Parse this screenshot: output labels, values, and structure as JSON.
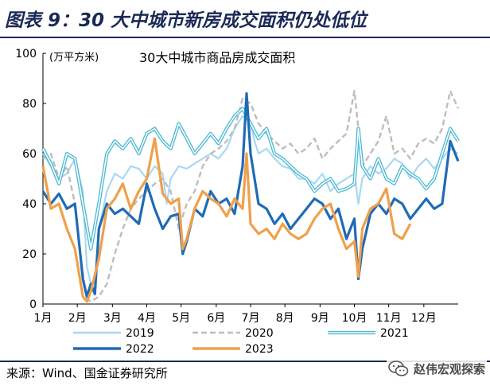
{
  "figure": {
    "title": "图表 9：30 大中城市新房成交面积仍处低位",
    "source": "来源：Wind、国金证券研究所",
    "watermark": "赵伟宏观探索",
    "watermark_icon": "wechat-icon"
  },
  "colors": {
    "2019": "#a9d8f2",
    "2020": "#bdbdbd",
    "2021": "#4bb8d6",
    "2022": "#1f6bb5",
    "2023": "#f0a04b",
    "title_rule": "#1b2a56"
  },
  "chart_data": {
    "type": "line",
    "title": "30大中城市商品房成交面积",
    "unit_label": "(万平方米)",
    "ylim": [
      0,
      100
    ],
    "yticks": [
      0,
      20,
      40,
      60,
      80,
      100
    ],
    "xlim": [
      1,
      53
    ],
    "xticks": [
      1,
      5.3,
      9.7,
      14,
      18.3,
      22.7,
      27,
      31.3,
      35.7,
      40,
      44.3,
      48.7
    ],
    "xtick_labels": [
      "1月",
      "2月",
      "3月",
      "4月",
      "5月",
      "6月",
      "7月",
      "8月",
      "9月",
      "10月",
      "11月",
      "12月"
    ],
    "legend": [
      {
        "name": "2019",
        "style": "thin"
      },
      {
        "name": "2020",
        "style": "dashed"
      },
      {
        "name": "2021",
        "style": "double"
      },
      {
        "name": "2022",
        "style": "thick"
      },
      {
        "name": "2023",
        "style": "thick"
      }
    ],
    "series": [
      {
        "name": "2019",
        "x": [
          1,
          2,
          3,
          4,
          5,
          6,
          6.5,
          7,
          7.5,
          8,
          9,
          10,
          11,
          12,
          13,
          14,
          15,
          16,
          16.5,
          17,
          18,
          19,
          20,
          21,
          22,
          23,
          24,
          25,
          26,
          27,
          27.5,
          28,
          29,
          30,
          31,
          32,
          33,
          34,
          35,
          36,
          37,
          38,
          39,
          40,
          40.5,
          41,
          42,
          43,
          44,
          45,
          46,
          47,
          48,
          49,
          50,
          51,
          52,
          53
        ],
        "values": [
          60,
          55,
          50,
          52,
          58,
          45,
          15,
          8,
          10,
          30,
          45,
          52,
          50,
          55,
          54,
          50,
          55,
          52,
          40,
          50,
          55,
          54,
          56,
          58,
          60,
          58,
          62,
          70,
          75,
          72,
          65,
          60,
          62,
          58,
          55,
          54,
          50,
          50,
          48,
          52,
          45,
          48,
          50,
          52,
          40,
          50,
          55,
          52,
          54,
          58,
          56,
          50,
          55,
          58,
          54,
          58,
          62,
          60
        ]
      },
      {
        "name": "2020",
        "x": [
          1,
          2,
          3,
          4,
          5,
          6,
          6.5,
          7,
          8,
          9,
          10,
          11,
          12,
          13,
          14,
          15,
          16,
          17,
          18,
          19,
          20,
          21,
          22,
          23,
          24,
          25,
          26,
          27,
          28,
          29,
          30,
          31,
          32,
          33,
          34,
          35,
          36,
          37,
          38,
          39,
          40,
          41,
          42,
          43,
          44,
          45,
          46,
          47,
          48,
          49,
          50,
          51,
          52,
          53
        ],
        "values": [
          58,
          60,
          50,
          55,
          40,
          12,
          2,
          1,
          3,
          8,
          20,
          30,
          38,
          42,
          45,
          48,
          50,
          45,
          30,
          40,
          45,
          55,
          60,
          62,
          65,
          70,
          82,
          80,
          72,
          68,
          65,
          62,
          64,
          60,
          62,
          66,
          58,
          62,
          65,
          68,
          85,
          55,
          60,
          65,
          75,
          60,
          62,
          58,
          64,
          66,
          64,
          70,
          85,
          78
        ]
      },
      {
        "name": "2021",
        "x": [
          1,
          2,
          3,
          4,
          5,
          6,
          7,
          8,
          9,
          10,
          11,
          12,
          13,
          14,
          15,
          16,
          17,
          18,
          19,
          20,
          21,
          22,
          23,
          24,
          25,
          26,
          27,
          28,
          29,
          30,
          31,
          32,
          33,
          34,
          35,
          36,
          37,
          38,
          39,
          40,
          40.5,
          41,
          42,
          43,
          44,
          45,
          46,
          47,
          48,
          49,
          50,
          51,
          52,
          53
        ],
        "values": [
          62,
          56,
          48,
          60,
          58,
          40,
          22,
          40,
          60,
          65,
          62,
          66,
          60,
          68,
          70,
          65,
          62,
          72,
          66,
          60,
          64,
          68,
          64,
          70,
          75,
          78,
          72,
          66,
          70,
          60,
          58,
          55,
          52,
          50,
          45,
          48,
          50,
          45,
          46,
          48,
          70,
          55,
          50,
          58,
          50,
          48,
          55,
          52,
          50,
          46,
          50,
          60,
          70,
          65
        ]
      },
      {
        "name": "2022",
        "x": [
          1,
          2,
          3,
          4,
          5,
          6,
          6.5,
          7,
          7.5,
          8,
          9,
          10,
          11,
          12,
          13,
          14,
          15,
          16,
          17,
          18,
          18.5,
          19,
          20,
          21,
          22,
          23,
          24,
          25,
          26,
          26.5,
          27,
          28,
          29,
          30,
          31,
          32,
          33,
          34,
          35,
          36,
          37,
          38,
          39,
          40,
          40.5,
          41,
          42,
          43,
          44,
          45,
          46,
          47,
          48,
          49,
          50,
          51,
          52,
          53
        ],
        "values": [
          45,
          40,
          44,
          38,
          40,
          10,
          3,
          8,
          4,
          30,
          40,
          36,
          38,
          35,
          32,
          48,
          38,
          30,
          35,
          36,
          20,
          25,
          38,
          35,
          45,
          40,
          42,
          36,
          55,
          84,
          60,
          40,
          38,
          32,
          36,
          30,
          34,
          38,
          42,
          40,
          34,
          38,
          26,
          34,
          10,
          22,
          36,
          40,
          36,
          42,
          40,
          34,
          38,
          42,
          38,
          40,
          65,
          57
        ]
      },
      {
        "name": "2023",
        "x": [
          1,
          2,
          3,
          4,
          5,
          6,
          6.5,
          7,
          8,
          9,
          10,
          11,
          12,
          13,
          14,
          15,
          16,
          17,
          18,
          18.5,
          19,
          20,
          21,
          22,
          23,
          24,
          25,
          26,
          26.5,
          27,
          28,
          29,
          30,
          31,
          32,
          33,
          34,
          35,
          36,
          37,
          38,
          39,
          40,
          40.5,
          41,
          42,
          43,
          44,
          45,
          46,
          47
        ],
        "values": [
          55,
          38,
          40,
          30,
          22,
          3,
          1,
          5,
          18,
          38,
          42,
          48,
          38,
          45,
          50,
          66,
          44,
          40,
          42,
          22,
          26,
          38,
          45,
          42,
          40,
          35,
          42,
          38,
          60,
          32,
          28,
          30,
          26,
          32,
          28,
          26,
          28,
          34,
          38,
          40,
          30,
          22,
          25,
          11,
          30,
          38,
          40,
          46,
          28,
          26,
          32
        ]
      }
    ]
  }
}
